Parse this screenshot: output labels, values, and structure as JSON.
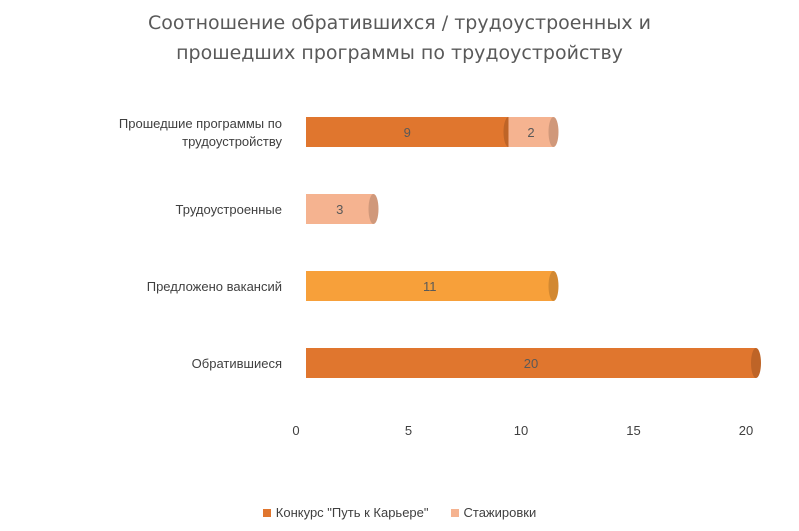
{
  "chart_data": {
    "type": "bar",
    "orientation": "horizontal",
    "stacked": true,
    "style": "cylinder",
    "title_lines": [
      "Соотношение обратившихся / трудоустроенных и",
      "прошедших программы по трудоустройству"
    ],
    "categories": [
      [
        "Прошедшие программы по",
        "трудоустройству"
      ],
      [
        "Трудоустроенные"
      ],
      [
        "Предложено вакансий"
      ],
      [
        "Обратившиеся"
      ]
    ],
    "series": [
      {
        "name": "Конкурс \"Путь к Карьере\"",
        "color": "#E0762E",
        "values": [
          9,
          null,
          11,
          20
        ],
        "point_colors": [
          "#E0762E",
          null,
          "#F7A03A",
          "#E0762E"
        ]
      },
      {
        "name": "Стажировки",
        "color": "#F5B390",
        "values": [
          2,
          3,
          null,
          null
        ]
      }
    ],
    "x_ticks": [
      "0",
      "5",
      "10",
      "15",
      "20"
    ],
    "xlim": [
      0,
      20
    ],
    "grid": false,
    "legend_position": "bottom",
    "data_labels": true
  }
}
